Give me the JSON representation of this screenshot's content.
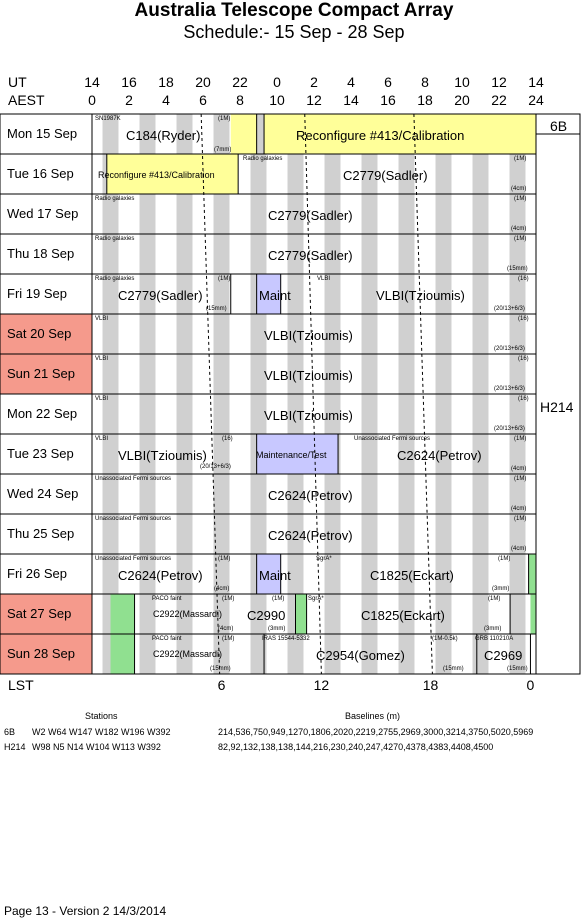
{
  "header": {
    "title": "Australia Telescope Compact Array",
    "subtitle": "Schedule:- 15 Sep - 28 Sep"
  },
  "axis": {
    "ut_label": "UT",
    "aest_label": "AEST",
    "lst_label": "LST",
    "ut_ticks": [
      "14",
      "16",
      "18",
      "20",
      "22",
      "0",
      "2",
      "4",
      "6",
      "8",
      "10",
      "12",
      "14"
    ],
    "aest_ticks": [
      "0",
      "2",
      "4",
      "6",
      "8",
      "10",
      "12",
      "14",
      "16",
      "18",
      "20",
      "22",
      "24"
    ],
    "lst_ticks": [
      "6",
      "12",
      "18",
      "0"
    ]
  },
  "rows": [
    {
      "label": "Mon  15 Sep",
      "weekend": false
    },
    {
      "label": "Tue   16 Sep",
      "weekend": false
    },
    {
      "label": "Wed  17 Sep",
      "weekend": false
    },
    {
      "label": "Thu   18 Sep",
      "weekend": false
    },
    {
      "label": "Fri    19 Sep",
      "weekend": false
    },
    {
      "label": "Sat   20 Sep",
      "weekend": true
    },
    {
      "label": "Sun  21 Sep",
      "weekend": true
    },
    {
      "label": "Mon  22 Sep",
      "weekend": false
    },
    {
      "label": "Tue   23 Sep",
      "weekend": false
    },
    {
      "label": "Wed  24 Sep",
      "weekend": false
    },
    {
      "label": "Thu   25 Sep",
      "weekend": false
    },
    {
      "label": "Fri    26 Sep",
      "weekend": false
    },
    {
      "label": "Sat   27 Sep",
      "weekend": true
    },
    {
      "label": "Sun  28 Sep",
      "weekend": true
    }
  ],
  "configs": {
    "first": "6B",
    "second": "H214"
  },
  "texts": {
    "r0_sn": "SN1987K",
    "r0_main": "C184(Ryder)",
    "r0_1m": "(1M)",
    "r0_7mm": "(7mm)",
    "r0_reconf": "Reconfigure #413/Calibration",
    "r1_reconf": "Reconfigure #413/Calibration",
    "r1_rg": "Radio galaxies",
    "r1_main": "C2779(Sadler)",
    "r1_1m": "(1M)",
    "r1_4cm": "(4cm)",
    "r2_rg": "Radio galaxies",
    "r2_main": "C2779(Sadler)",
    "r2_1m": "(1M)",
    "r2_4cm": "(4cm)",
    "r3_rg": "Radio galaxies",
    "r3_main": "C2779(Sadler)",
    "r3_1m": "(1M)",
    "r3_15mm": "(15mm)",
    "r4_rg": "Radio galaxies",
    "r4_1m": "(1M)",
    "r4_main": "C2779(Sadler)",
    "r4_15mm": "(15mm)",
    "r4_maint": "Maint",
    "r4_vlbi": "VLBI",
    "r4_vlbi_main": "VLBI(Tzioumis)",
    "r4_16": "(16)",
    "r4_band": "(20/13+6/3)",
    "r5_vlbi": "VLBI",
    "r5_main": "VLBI(Tzioumis)",
    "r5_16": "(16)",
    "r5_band": "(20/13+6/3)",
    "r6_vlbi": "VLBI",
    "r6_main": "VLBI(Tzioumis)",
    "r6_16": "(16)",
    "r6_band": "(20/13+6/3)",
    "r7_vlbi": "VLBI",
    "r7_main": "VLBI(Tzioumis)",
    "r7_16": "(16)",
    "r7_band": "(20/13+6/3)",
    "r8_vlbi": "VLBI",
    "r8_main": "VLBI(Tzioumis)",
    "r8_16": "(16)",
    "r8_band": "(20/13+6/3)",
    "r8_maint": "Maintenance/Test",
    "r8_ufs": "Unassociated Fermi sources",
    "r8_main2": "C2624(Petrov)",
    "r8_1m": "(1M)",
    "r8_4cm": "(4cm)",
    "r9_ufs": "Unassociated Fermi sources",
    "r9_main": "C2624(Petrov)",
    "r9_1m": "(1M)",
    "r9_4cm": "(4cm)",
    "r10_ufs": "Unassociated Fermi sources",
    "r10_main": "C2624(Petrov)",
    "r10_1m": "(1M)",
    "r10_4cm": "(4cm)",
    "r11_ufs": "Unassociated Fermi sources",
    "r11_1m": "(1M)",
    "r11_main": "C2624(Petrov)",
    "r11_4cm": "(4cm)",
    "r11_maint": "Maint",
    "r11_sgr": "SgrA*",
    "r11_main2": "C1825(Eckart)",
    "r11_1m2": "(1M)",
    "r11_3mm": "(3mm)",
    "r12_paco": "PACO faint",
    "r12_1m": "(1M)",
    "r12_main": "C2922(Massardi)",
    "r12_4cm": "(4cm)",
    "r12_1mb": "(1M)",
    "r12_c2990": "C2990",
    "r12_3mm": "(3mm)",
    "r12_sgr": "SgrA*",
    "r12_main2": "C1825(Eckart)",
    "r12_1m2": "(1M)",
    "r12_3mm2": "(3mm)",
    "r13_paco": "PACO faint",
    "r13_1m": "(1M)",
    "r13_main": "C2922(Massardi)",
    "r13_15mm": "(15mm)",
    "r13_iras": "IRAS 15544-5332",
    "r13_main2": "C2954(Gomez)",
    "r13_1m05": "(1M-0.5k)",
    "r13_15mmb": "(15mm)",
    "r13_grb": "GRB 110210A",
    "r13_c2969": "C2969",
    "r13_15mmc": "(15mm)"
  },
  "footer": {
    "stations_title": "Stations",
    "baselines_title": "Baselines (m)",
    "cfg1_name": "6B",
    "cfg1_stations": "W2 W64 W147 W182 W196 W392",
    "cfg1_baselines": "214,536,750,949,1270,1806,2020,2219,2755,2969,3000,3214,3750,5020,5969",
    "cfg2_name": "H214",
    "cfg2_stations": "W98 N5 N14 W104 W113 W392",
    "cfg2_baselines": "82,92,132,138,138,144,216,230,240,247,4270,4378,4383,4408,4500",
    "page_info": "Page 13 - Version 2  14/3/2014"
  },
  "colors": {
    "weekend": "#f59a8c",
    "grey_band": "#d0d0d0",
    "reconfig": "#ffff99",
    "maintenance": "#c8c8ff",
    "green_block": "#90e090"
  }
}
